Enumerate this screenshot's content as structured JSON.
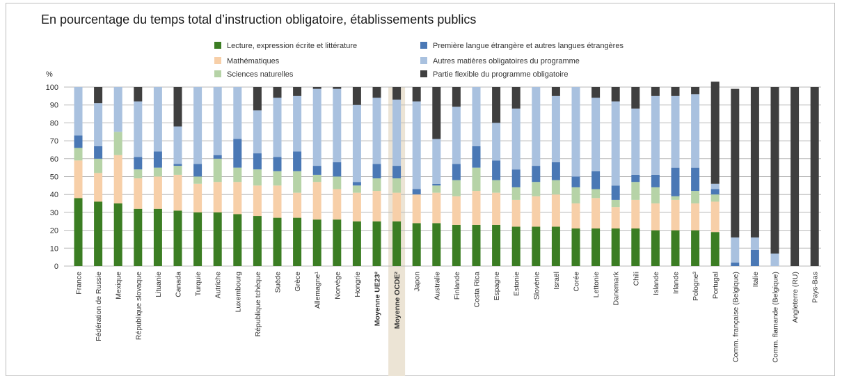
{
  "title": "En pourcentage du temps total d’instruction obligatoire, établissements publics",
  "chart_data": {
    "type": "bar",
    "stacked": true,
    "ylabel": "%",
    "ylim": [
      0,
      100
    ],
    "yticks": [
      0,
      10,
      20,
      30,
      40,
      50,
      60,
      70,
      80,
      90,
      100
    ],
    "grid": true,
    "legend_position": "top",
    "categories": [
      "France",
      "Fédération de Russie",
      "Mexique",
      "République slovaque",
      "Lituanie",
      "Canada",
      "Turquie",
      "Autriche",
      "Luxembourg",
      "République tchèque",
      "Suède",
      "Grèce",
      "Allemagne¹",
      "Norvège",
      "Hongrie",
      "Moyenne UE23²",
      "Moyenne OCDE²",
      "Japon",
      "Australie",
      "Finlande",
      "Costa Rica",
      "Espagne",
      "Estonie",
      "Slovénie",
      "Israël",
      "Corée",
      "Lettonie",
      "Danemark",
      "Chili",
      "Islande",
      "Irlande",
      "Pologne³",
      "Portugal",
      "Comm. française (Belgique)",
      "Italie",
      "Comm. flamande (Belgique)",
      "Angleterre (RU)",
      "Pays-Bas"
    ],
    "bold_categories": [
      "Moyenne UE23²",
      "Moyenne OCDE²"
    ],
    "highlight_category": "Moyenne OCDE²",
    "series": [
      {
        "name": "Lecture, expression écrite et littérature",
        "color": "#3b7d23",
        "values": [
          38,
          36,
          35,
          32,
          32,
          31,
          30,
          30,
          29,
          28,
          27,
          27,
          26,
          26,
          25,
          25,
          25,
          24,
          24,
          23,
          23,
          23,
          22,
          22,
          22,
          21,
          21,
          21,
          21,
          20,
          20,
          20,
          19,
          0,
          0,
          0,
          0,
          0
        ]
      },
      {
        "name": "Mathématiques",
        "color": "#f7cfa8",
        "values": [
          21,
          16,
          27,
          17,
          18,
          20,
          16,
          17,
          18,
          17,
          18,
          14,
          21,
          17,
          16,
          17,
          16,
          16,
          17,
          16,
          19,
          18,
          15,
          17,
          18,
          14,
          17,
          12,
          16,
          15,
          17,
          15,
          17,
          0,
          0,
          0,
          0,
          0
        ]
      },
      {
        "name": "Sciences naturelles",
        "color": "#b6d3a7",
        "values": [
          7,
          8,
          13,
          5,
          5,
          5,
          4,
          13,
          8,
          9,
          8,
          12,
          4,
          7,
          4,
          7,
          8,
          0,
          4,
          9,
          13,
          7,
          7,
          8,
          8,
          9,
          5,
          4,
          10,
          9,
          2,
          7,
          4,
          0,
          0,
          0,
          0,
          0
        ]
      },
      {
        "name": "Première langue étrangère et autres langues étrangères",
        "color": "#4a78b5",
        "values": [
          7,
          7,
          0,
          7,
          9,
          1,
          7,
          2,
          16,
          9,
          8,
          11,
          5,
          8,
          2,
          8,
          7,
          3,
          1,
          9,
          12,
          11,
          10,
          9,
          10,
          6,
          10,
          8,
          4,
          7,
          16,
          13,
          3,
          2,
          9,
          0,
          0,
          0
        ]
      },
      {
        "name": "Autres matières obligatoires du programme",
        "color": "#a9c1df",
        "values": [
          27,
          24,
          25,
          31,
          36,
          21,
          43,
          38,
          29,
          24,
          33,
          31,
          43,
          41,
          43,
          37,
          37,
          49,
          25,
          32,
          33,
          21,
          34,
          44,
          37,
          50,
          41,
          47,
          37,
          44,
          40,
          41,
          3,
          14,
          7,
          7,
          0,
          0
        ]
      },
      {
        "name": "Partie flexible du programme obligatoire",
        "color": "#3f3f3f",
        "values": [
          0,
          9,
          0,
          8,
          0,
          22,
          0,
          0,
          0,
          13,
          6,
          5,
          1,
          1,
          10,
          6,
          7,
          8,
          29,
          11,
          0,
          20,
          12,
          0,
          5,
          0,
          6,
          8,
          12,
          5,
          5,
          4,
          57,
          83,
          84,
          93,
          100,
          100
        ]
      }
    ]
  }
}
